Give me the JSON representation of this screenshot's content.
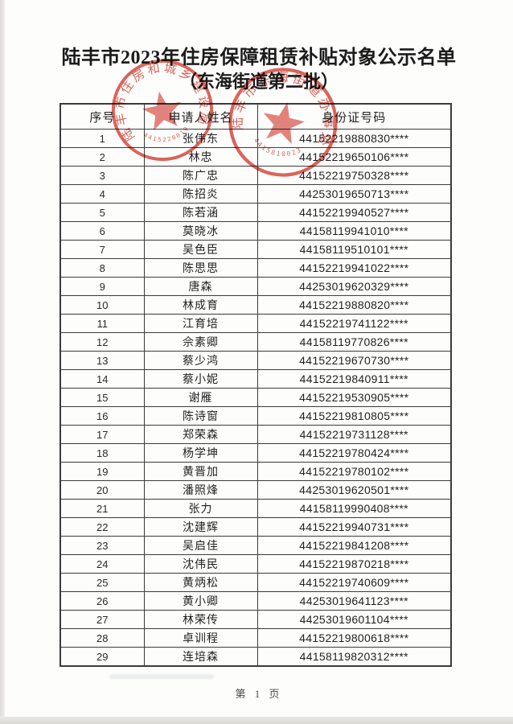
{
  "page": {
    "title_line1": "陆丰市2023年住房保障租赁补贴对象公示名单",
    "title_line2": "（东海街道第二批）",
    "footer": "第 1 页"
  },
  "table": {
    "headers": [
      "序号",
      "申请人姓名",
      "身份证号码"
    ],
    "rows": [
      {
        "no": "1",
        "name": "张伟东",
        "id": "44152219880830****"
      },
      {
        "no": "2",
        "name": "林忠",
        "id": "44152219650106****"
      },
      {
        "no": "3",
        "name": "陈广忠",
        "id": "44152219750328****"
      },
      {
        "no": "4",
        "name": "陈招炎",
        "id": "44253019650713****"
      },
      {
        "no": "5",
        "name": "陈若涵",
        "id": "44152219940527****"
      },
      {
        "no": "6",
        "name": "莫晓冰",
        "id": "44158119941010****"
      },
      {
        "no": "7",
        "name": "吴色臣",
        "id": "44158119510101****"
      },
      {
        "no": "8",
        "name": "陈思思",
        "id": "44152219941022****"
      },
      {
        "no": "9",
        "name": "唐森",
        "id": "44253019620329****"
      },
      {
        "no": "10",
        "name": "林成育",
        "id": "44152219880820****"
      },
      {
        "no": "11",
        "name": "江育培",
        "id": "44152219741122****"
      },
      {
        "no": "12",
        "name": "佘素卿",
        "id": "44158119770826****"
      },
      {
        "no": "13",
        "name": "蔡少鸿",
        "id": "44152219670730****"
      },
      {
        "no": "14",
        "name": "蔡小妮",
        "id": "44152219840911****"
      },
      {
        "no": "15",
        "name": "谢雁",
        "id": "44152219530905****"
      },
      {
        "no": "16",
        "name": "陈诗窗",
        "id": "44152219810805****"
      },
      {
        "no": "17",
        "name": "郑荣森",
        "id": "44152219731128****"
      },
      {
        "no": "18",
        "name": "杨学坤",
        "id": "44152219780424****"
      },
      {
        "no": "19",
        "name": "黄晋加",
        "id": "44152219780102****"
      },
      {
        "no": "20",
        "name": "潘照烽",
        "id": "44253019620501****"
      },
      {
        "no": "21",
        "name": "张力",
        "id": "44158119990408****"
      },
      {
        "no": "22",
        "name": "沈建辉",
        "id": "44152219940731****"
      },
      {
        "no": "23",
        "name": "吴启佳",
        "id": "44152219841208****"
      },
      {
        "no": "24",
        "name": "沈伟民",
        "id": "44152219870218****"
      },
      {
        "no": "25",
        "name": "黄炳松",
        "id": "44152219740609****"
      },
      {
        "no": "26",
        "name": "黄小卿",
        "id": "44253019641123****"
      },
      {
        "no": "27",
        "name": "林荣传",
        "id": "44253019601104****"
      },
      {
        "no": "28",
        "name": "卓训程",
        "id": "44152219800618****"
      },
      {
        "no": "29",
        "name": "连培森",
        "id": "44158119820312****"
      }
    ]
  },
  "stamps": [
    {
      "rim_text": "陆丰市住房和城乡建设局",
      "code": "4415220019"
    },
    {
      "rim_text": "陆丰市东海街道办事处",
      "code": "4415810023"
    }
  ],
  "colors": {
    "stamp_red": "#d84f44",
    "ink": "#1b1b1b",
    "table_border": "#3b3b3b",
    "paper": "#fdfdfc"
  }
}
